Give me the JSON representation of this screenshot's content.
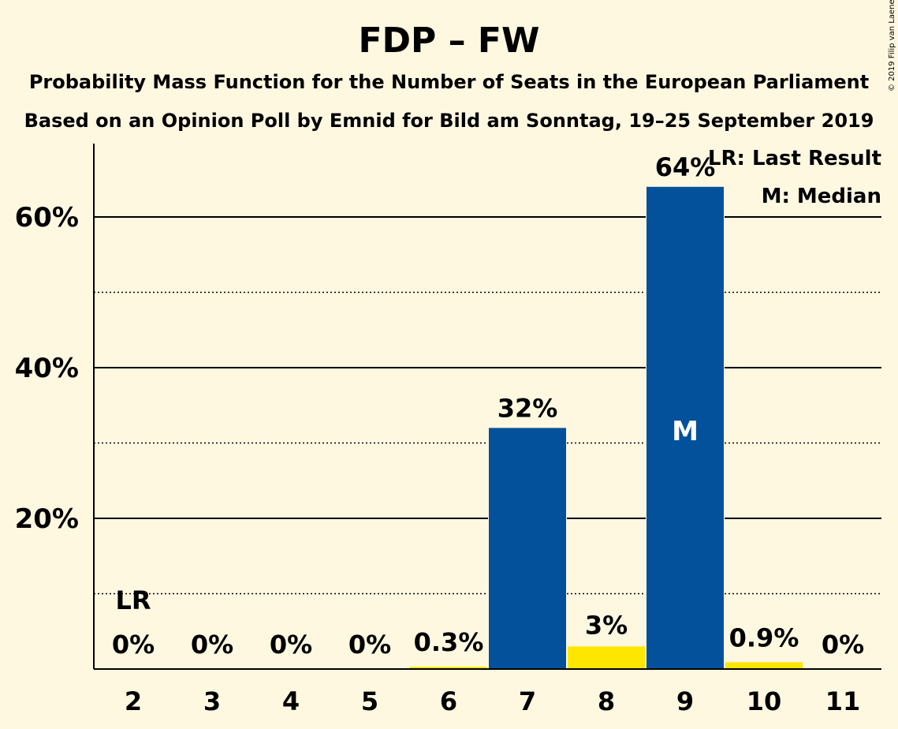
{
  "header": {
    "title": "FDP – FW",
    "subtitle1": "Probability Mass Function for the Number of Seats in the European Parliament",
    "subtitle2": "Based on an Opinion Poll by Emnid for Bild am Sonntag, 19–25 September 2019",
    "copyright": "© 2019 Filip van Laenen"
  },
  "legend": {
    "lr": "LR: Last Result",
    "m": "M: Median"
  },
  "colors": {
    "background": "#FFF8E1",
    "primary_bar": "#03509B",
    "secondary_bar": "#FFE600"
  },
  "chart_data": {
    "type": "bar",
    "categories": [
      "2",
      "3",
      "4",
      "5",
      "6",
      "7",
      "8",
      "9",
      "10",
      "11"
    ],
    "values": [
      0,
      0,
      0,
      0,
      0.3,
      32,
      3,
      64,
      0.9,
      0
    ],
    "value_labels": [
      "0%",
      "0%",
      "0%",
      "0%",
      "0.3%",
      "32%",
      "3%",
      "64%",
      "0.9%",
      "0%"
    ],
    "bar_colors": [
      "primary",
      "primary",
      "primary",
      "primary",
      "secondary",
      "primary",
      "secondary",
      "primary",
      "secondary",
      "primary"
    ],
    "ylim": [
      0,
      70
    ],
    "yticks_major": [
      20,
      40,
      60
    ],
    "ytick_labels": [
      "20%",
      "40%",
      "60%"
    ],
    "yticks_minor": [
      10,
      30,
      50
    ],
    "last_result_category": "2",
    "last_result_label": "LR",
    "median_category": "9",
    "median_label": "M",
    "legend_position": "top-right"
  }
}
